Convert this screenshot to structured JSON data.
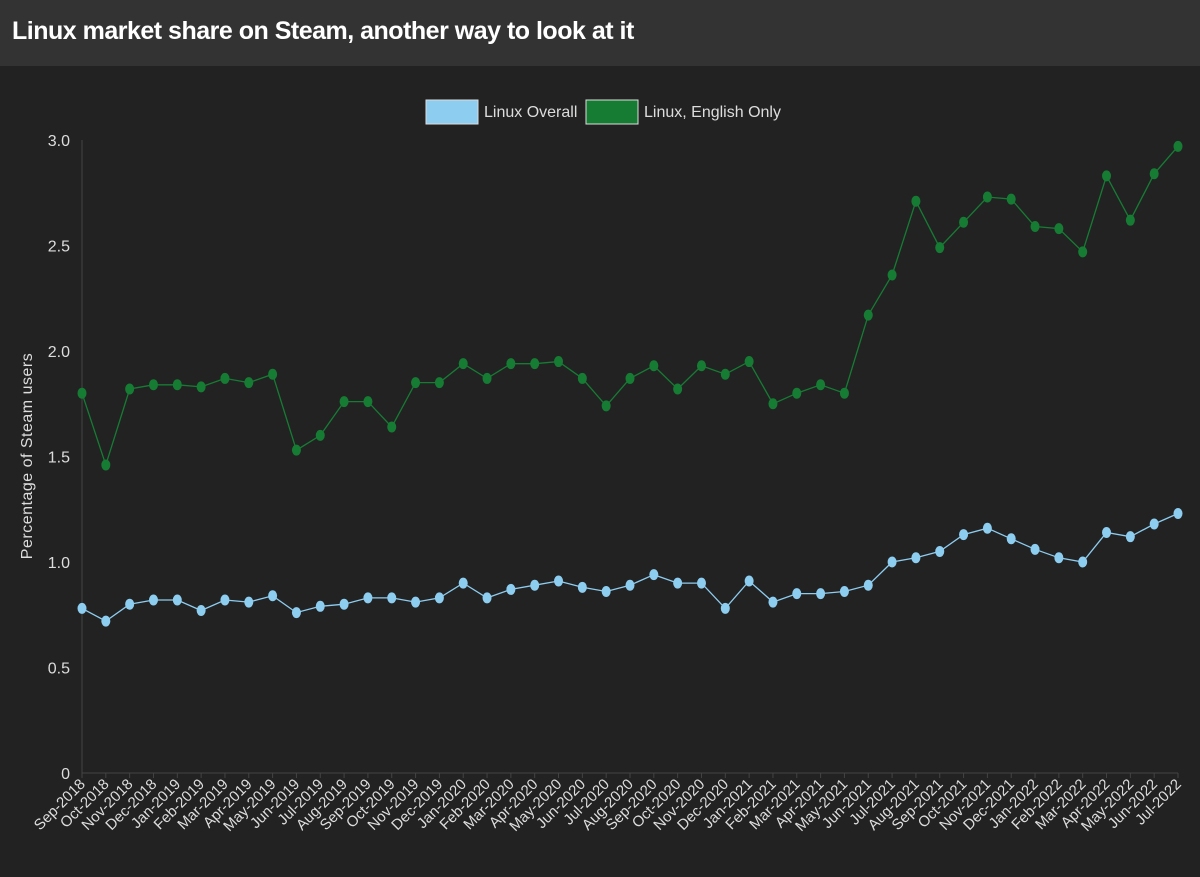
{
  "page": {
    "title": "Linux market share on Steam, another way to look at it"
  },
  "chart_data": {
    "type": "line",
    "title": "Linux market share on Steam, another way to look at it",
    "xlabel": "",
    "ylabel": "Percentage of Steam users",
    "ylim": [
      0,
      3.0
    ],
    "yticks": [
      "0",
      "0.5",
      "1.0",
      "1.5",
      "2.0",
      "2.5",
      "3.0"
    ],
    "grid": false,
    "legend_position": "top-center",
    "categories": [
      "Sep-2018",
      "Oct-2018",
      "Nov-2018",
      "Dec-2018",
      "Jan-2019",
      "Feb-2019",
      "Mar-2019",
      "Apr-2019",
      "May-2019",
      "Jun-2019",
      "Jul-2019",
      "Aug-2019",
      "Sep-2019",
      "Oct-2019",
      "Nov-2019",
      "Dec-2019",
      "Jan-2020",
      "Feb-2020",
      "Mar-2020",
      "Apr-2020",
      "May-2020",
      "Jun-2020",
      "Jul-2020",
      "Aug-2020",
      "Sep-2020",
      "Oct-2020",
      "Nov-2020",
      "Dec-2020",
      "Jan-2021",
      "Feb-2021",
      "Mar-2021",
      "Apr-2021",
      "May-2021",
      "Jun-2021",
      "Jul-2021",
      "Aug-2021",
      "Sep-2021",
      "Oct-2021",
      "Nov-2021",
      "Dec-2021",
      "Jan-2022",
      "Feb-2022",
      "Mar-2022",
      "Apr-2022",
      "May-2022",
      "Jun-2022",
      "Jul-2022"
    ],
    "series": [
      {
        "name": "Linux Overall",
        "color": "#8dcdf0",
        "values": [
          0.78,
          0.72,
          0.8,
          0.82,
          0.82,
          0.77,
          0.82,
          0.81,
          0.84,
          0.76,
          0.79,
          0.8,
          0.83,
          0.83,
          0.81,
          0.83,
          0.9,
          0.83,
          0.87,
          0.89,
          0.91,
          0.88,
          0.86,
          0.89,
          0.94,
          0.9,
          0.9,
          0.78,
          0.91,
          0.81,
          0.85,
          0.85,
          0.86,
          0.89,
          1.0,
          1.02,
          1.05,
          1.13,
          1.16,
          1.11,
          1.06,
          1.02,
          1.0,
          1.14,
          1.12,
          1.18,
          1.23
        ]
      },
      {
        "name": "Linux, English Only",
        "color": "#167c34",
        "values": [
          1.8,
          1.46,
          1.82,
          1.84,
          1.84,
          1.83,
          1.87,
          1.85,
          1.89,
          1.53,
          1.6,
          1.76,
          1.76,
          1.64,
          1.85,
          1.85,
          1.94,
          1.87,
          1.94,
          1.94,
          1.95,
          1.87,
          1.74,
          1.87,
          1.93,
          1.82,
          1.93,
          1.89,
          1.95,
          1.75,
          1.8,
          1.84,
          1.8,
          2.17,
          2.36,
          2.71,
          2.49,
          2.61,
          2.73,
          2.72,
          2.59,
          2.58,
          2.47,
          2.83,
          2.62,
          2.84,
          2.97
        ]
      }
    ]
  }
}
